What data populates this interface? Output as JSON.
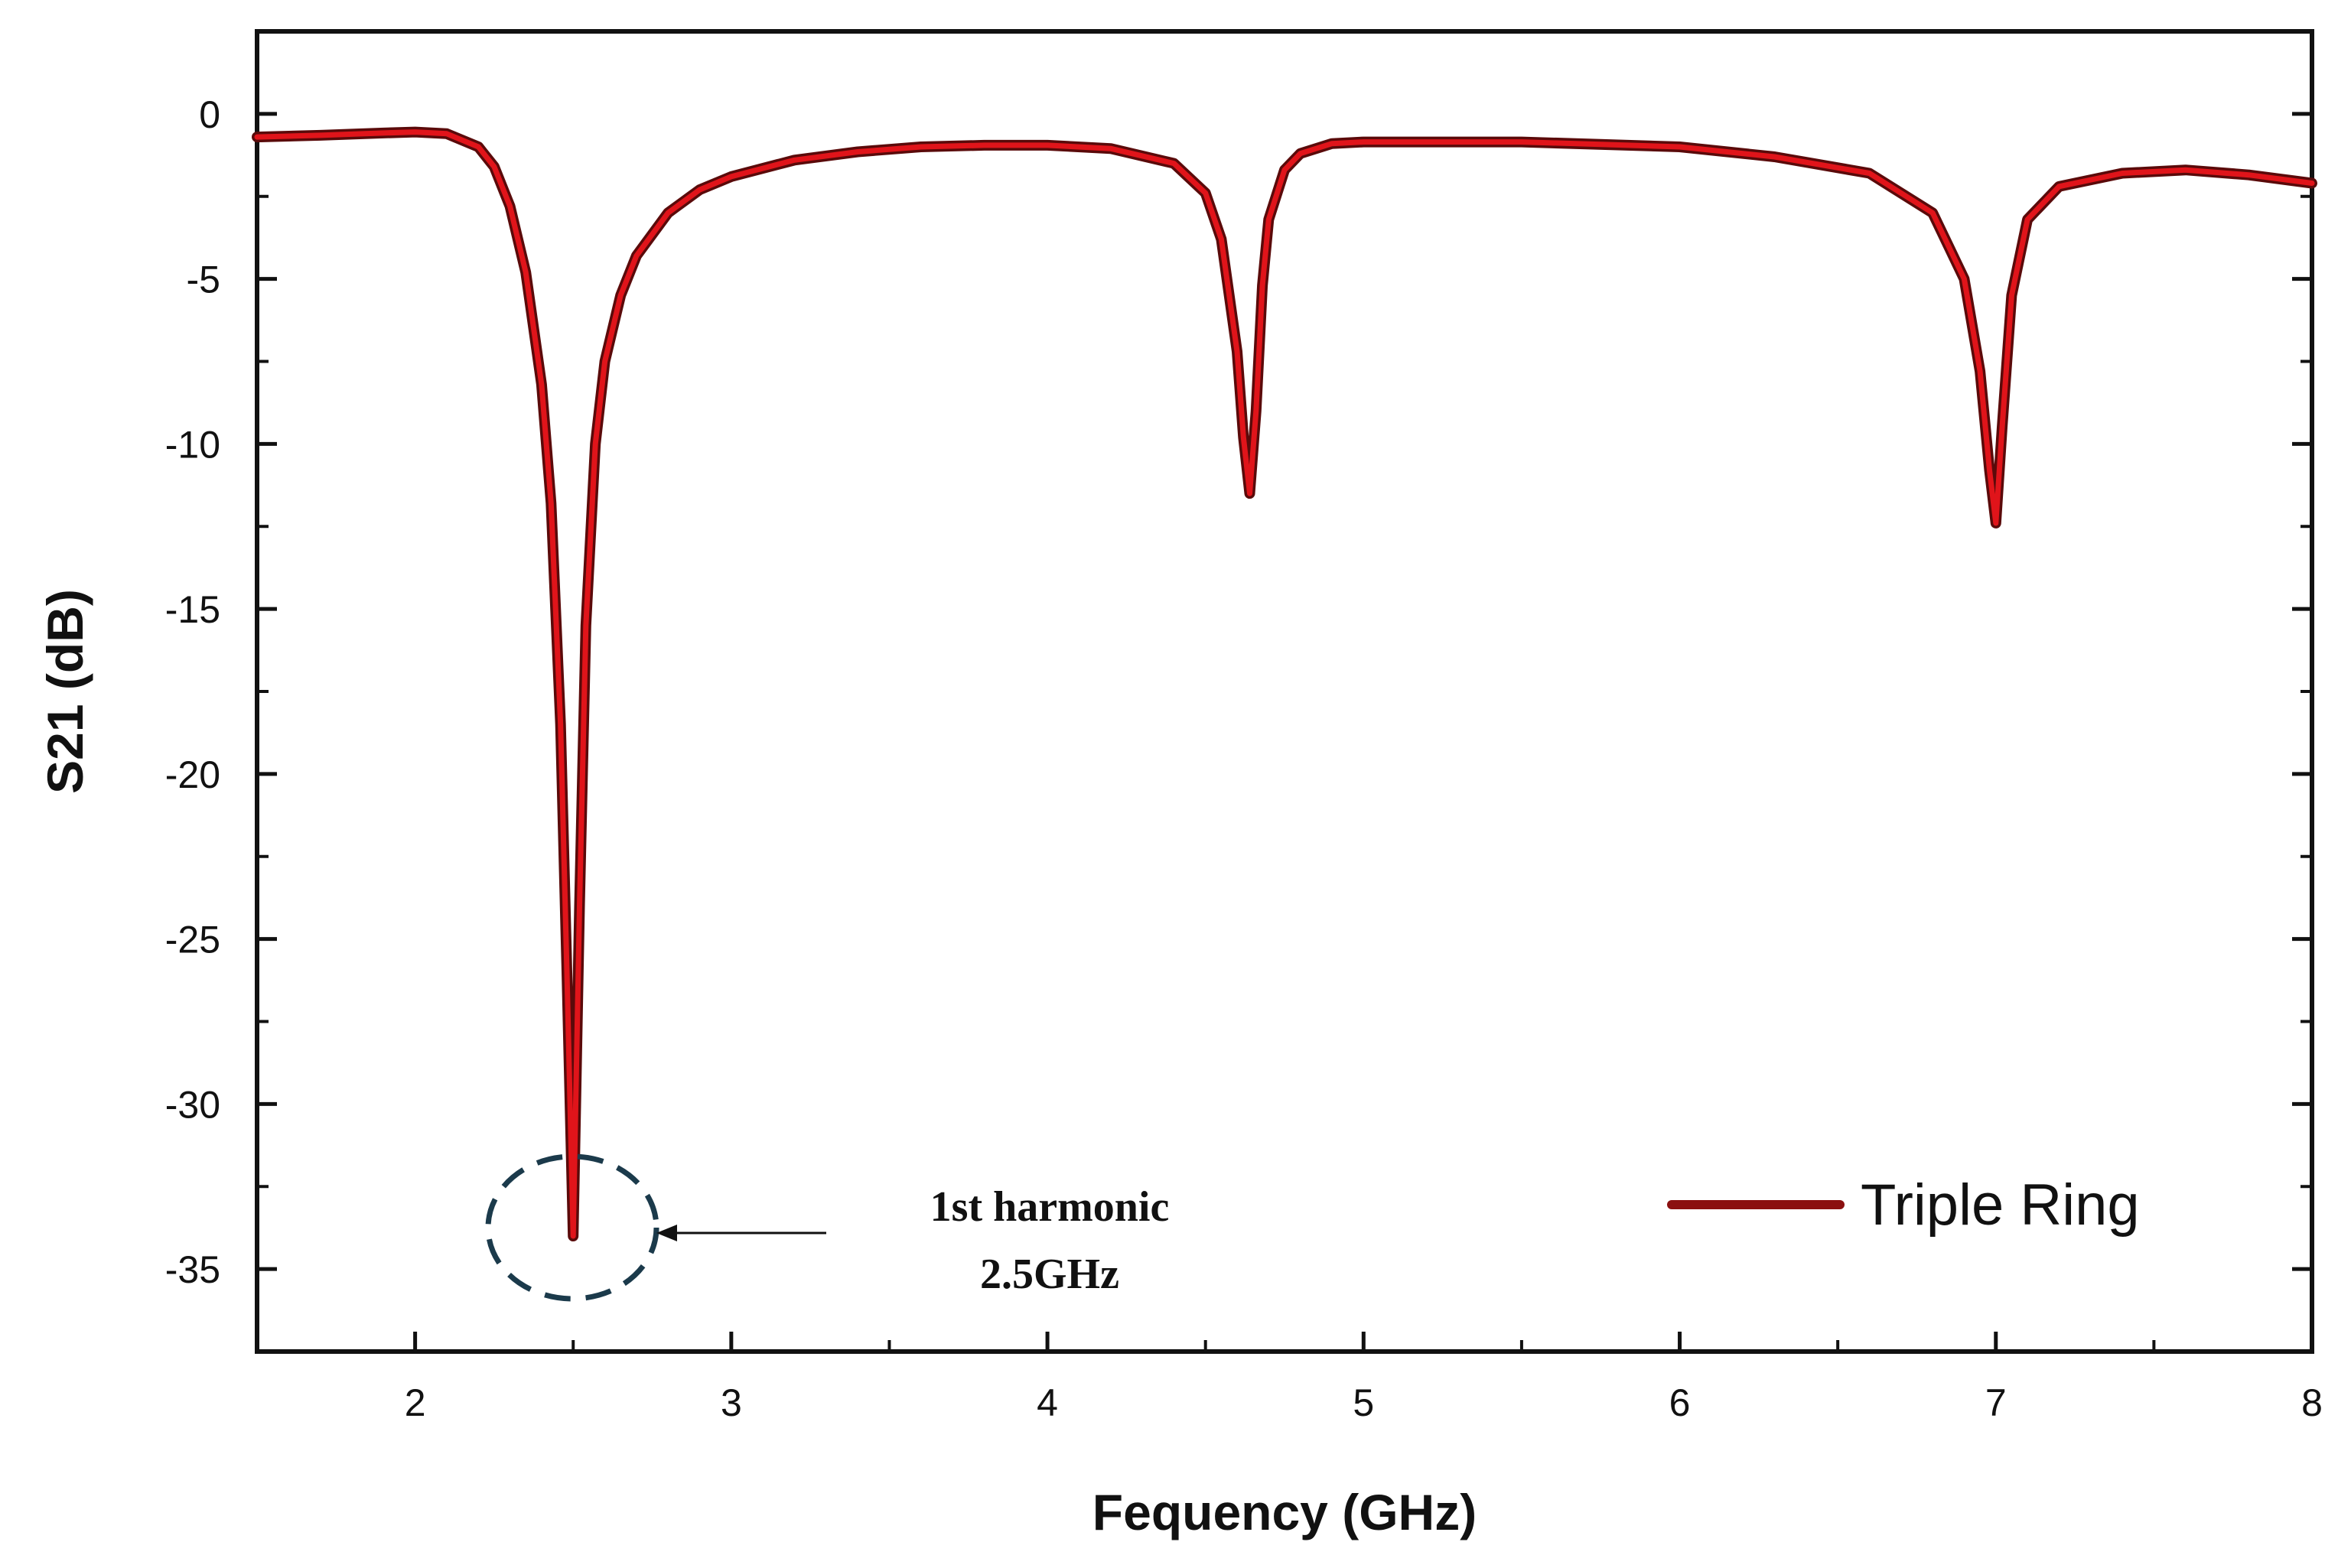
{
  "chart_data": {
    "type": "line",
    "xlabel": "Fequency (GHz)",
    "ylabel": "S21 (dB)",
    "xlim": [
      1.5,
      8
    ],
    "ylim": [
      -37.5,
      2.5
    ],
    "x_ticks": [
      2,
      3,
      4,
      5,
      6,
      7,
      8
    ],
    "x_tick_labels": [
      "2",
      "3",
      "4",
      "5",
      "6",
      "7",
      "8"
    ],
    "y_ticks": [
      0,
      -5,
      -10,
      -15,
      -20,
      -25,
      -30,
      -35
    ],
    "y_tick_labels": [
      "0",
      "-5",
      "-10",
      "-15",
      "-20",
      "-25",
      "-30",
      "-35"
    ],
    "grid": false,
    "legend": {
      "position": "bottom-right",
      "entries": [
        "Triple Ring"
      ]
    },
    "series": [
      {
        "name": "Triple Ring",
        "color": "#e0141a",
        "x": [
          1.5,
          1.7,
          1.9,
          2.0,
          2.1,
          2.2,
          2.25,
          2.3,
          2.35,
          2.4,
          2.43,
          2.46,
          2.48,
          2.5,
          2.52,
          2.54,
          2.57,
          2.6,
          2.65,
          2.7,
          2.8,
          2.9,
          3.0,
          3.2,
          3.4,
          3.6,
          3.8,
          4.0,
          4.2,
          4.4,
          4.5,
          4.55,
          4.6,
          4.62,
          4.64,
          4.66,
          4.68,
          4.7,
          4.75,
          4.8,
          4.9,
          5.0,
          5.2,
          5.5,
          6.0,
          6.3,
          6.6,
          6.8,
          6.9,
          6.95,
          6.98,
          7.0,
          7.02,
          7.05,
          7.1,
          7.2,
          7.4,
          7.6,
          7.8,
          8.0
        ],
        "y": [
          -0.7,
          -0.65,
          -0.58,
          -0.55,
          -0.6,
          -1.0,
          -1.6,
          -2.8,
          -4.8,
          -8.2,
          -11.8,
          -18.5,
          -26.0,
          -34.0,
          -24.0,
          -15.5,
          -10.0,
          -7.5,
          -5.5,
          -4.3,
          -3.0,
          -2.3,
          -1.9,
          -1.4,
          -1.15,
          -1.0,
          -0.95,
          -0.95,
          -1.05,
          -1.5,
          -2.4,
          -3.8,
          -7.2,
          -9.8,
          -11.5,
          -9.0,
          -5.2,
          -3.2,
          -1.7,
          -1.2,
          -0.9,
          -0.85,
          -0.85,
          -0.85,
          -1.0,
          -1.3,
          -1.8,
          -3.0,
          -5.0,
          -7.8,
          -10.8,
          -12.4,
          -9.5,
          -5.5,
          -3.2,
          -2.2,
          -1.8,
          -1.7,
          -1.85,
          -2.1
        ]
      }
    ],
    "annotations": [
      {
        "text_line1": "1st harmonic",
        "text_line2": "2.5GHz",
        "target_x": 2.5,
        "target_y": -33.8
      }
    ]
  }
}
